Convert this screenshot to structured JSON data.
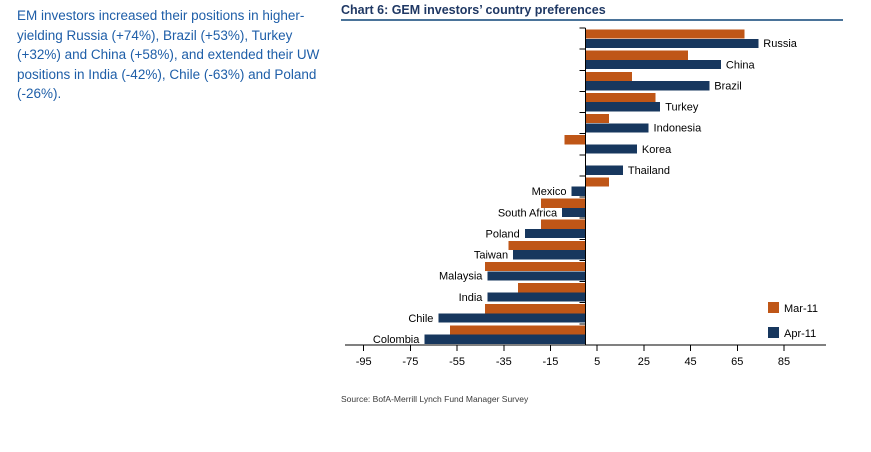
{
  "commentary": {
    "text": "EM investors increased their positions in higher-yielding Russia (+74%), Brazil (+53%), Turkey (+32%) and China (+58%), and extended their UW positions in India (-42%), Chile (-63%) and Poland (-26%)."
  },
  "chart": {
    "title": "Chart 6: GEM investors’ country preferences",
    "source": "Source: BofA-Merrill Lynch Fund Manager Survey"
  },
  "chart_data": {
    "type": "bar",
    "orientation": "horizontal",
    "title": "Chart 6: GEM investors’ country preferences",
    "categories": [
      "Russia",
      "China",
      "Brazil",
      "Turkey",
      "Indonesia",
      "Korea",
      "Thailand",
      "Mexico",
      "South Africa",
      "Poland",
      "Taiwan",
      "Malaysia",
      "India",
      "Chile",
      "Colombia"
    ],
    "series": [
      {
        "name": "Mar-11",
        "color": "#BF5617",
        "values": [
          68,
          44,
          20,
          30,
          10,
          -9,
          0,
          10,
          -19,
          -19,
          -33,
          -43,
          -29,
          -43,
          -58
        ]
      },
      {
        "name": "Apr-11",
        "color": "#17375E",
        "values": [
          74,
          58,
          53,
          32,
          27,
          22,
          16,
          -6,
          -10,
          -26,
          -31,
          -42,
          -42,
          -63,
          -69
        ]
      }
    ],
    "xticks": [
      -95,
      -75,
      -55,
      -35,
      -15,
      5,
      25,
      45,
      65,
      85
    ],
    "xlim": [
      -103,
      103
    ],
    "grid": false,
    "legend_position": "bottom-right",
    "value_unit": "% net overweight"
  },
  "palette": {
    "commentary_text": "#1E5EA8",
    "title_text": "#1F3864",
    "title_rule": "#4A7399",
    "axis": "#000000",
    "label_text": "#000000",
    "source_text": "#3A3A3A"
  }
}
